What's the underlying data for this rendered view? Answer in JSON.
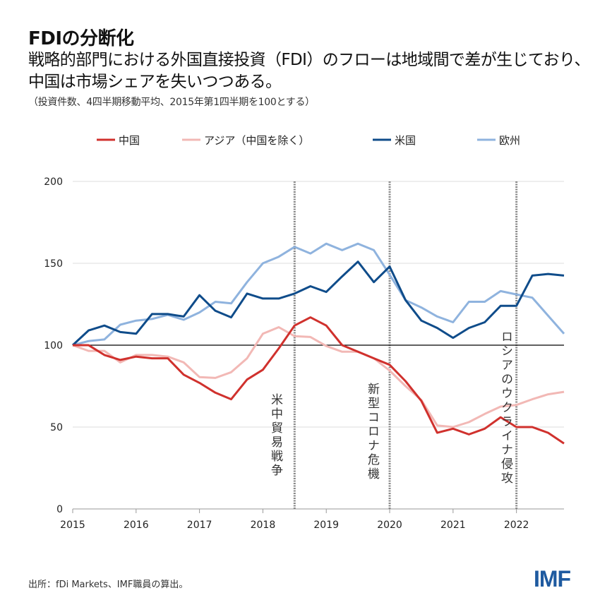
{
  "title": "FDIの分断化",
  "subtitle": "戦略的部門における外国直接投資（FDI）のフローは地域間で差が生じており、中国は市場シェアを失いつつある。",
  "note": "（投資件数、4四半期移動平均、2015年第1四半期を100とする）",
  "source": "出所：fDi Markets、IMF職員の算出。",
  "logo": "IMF",
  "chart_data": {
    "type": "line",
    "x_start": "2015Q1",
    "x_frequency": "quarterly",
    "x": [
      2015,
      2015.25,
      2015.5,
      2015.75,
      2016,
      2016.25,
      2016.5,
      2016.75,
      2017,
      2017.25,
      2017.5,
      2017.75,
      2018,
      2018.25,
      2018.5,
      2018.75,
      2019,
      2019.25,
      2019.5,
      2019.75,
      2020,
      2020.25,
      2020.5,
      2020.75,
      2021,
      2021.25,
      2021.5,
      2021.75,
      2022,
      2022.25,
      2022.5,
      2022.75
    ],
    "xlim": [
      2015,
      2022.75
    ],
    "xticks": [
      "2015",
      "2016",
      "2017",
      "2018",
      "2019",
      "2020",
      "2021",
      "2022"
    ],
    "ylim": [
      0,
      200
    ],
    "yticks": [
      "0",
      "50",
      "100",
      "150",
      "200"
    ],
    "reference_line": 100,
    "grid": "horizontal",
    "legend_position": "top",
    "series": [
      {
        "name": "中国",
        "color": "#d0312d",
        "values": [
          100,
          100,
          94,
          91,
          93,
          92,
          92,
          82,
          77,
          71,
          67,
          79,
          85,
          98,
          112,
          117,
          112,
          100,
          96,
          92,
          88,
          78,
          66,
          46.5,
          49,
          45.5,
          49,
          56,
          50,
          50,
          46.5,
          40
        ]
      },
      {
        "name": "アジア（中国を除く）",
        "color": "#f2b8b5",
        "values": [
          100,
          96.5,
          96.5,
          89.5,
          94,
          94,
          93,
          89.5,
          80.5,
          80,
          83.5,
          92,
          107,
          111,
          105.5,
          105,
          99.5,
          96,
          96,
          92,
          84.5,
          75,
          66.5,
          51,
          50,
          53,
          58,
          62.5,
          63.5,
          67,
          70,
          71.5
        ]
      },
      {
        "name": "米国",
        "color": "#0f4c8a",
        "values": [
          100,
          109,
          112,
          108,
          107,
          119,
          119,
          117.5,
          130.5,
          121,
          117,
          131.5,
          128.5,
          128.5,
          131.5,
          136,
          132.5,
          142,
          151,
          138.5,
          148,
          127.5,
          115,
          110.5,
          104.5,
          110.5,
          114,
          124,
          124,
          142.5,
          143.5,
          142.5
        ]
      },
      {
        "name": "欧州",
        "color": "#8fb3de",
        "values": [
          100,
          102.5,
          103.5,
          112.5,
          115,
          116,
          118.5,
          115.5,
          120,
          126.5,
          125.5,
          138.5,
          150,
          154,
          160,
          156,
          162,
          158,
          162,
          158,
          143,
          127.5,
          123,
          117.5,
          114,
          126.5,
          126.5,
          133,
          131,
          129,
          118,
          107
        ]
      }
    ],
    "events": [
      {
        "x": 2018.5,
        "label": "米中貿易戦争"
      },
      {
        "x": 2020.0,
        "label": "新型コロナ危機"
      },
      {
        "x": 2022.0,
        "label": "ロシアのウクライナ侵攻"
      }
    ]
  }
}
